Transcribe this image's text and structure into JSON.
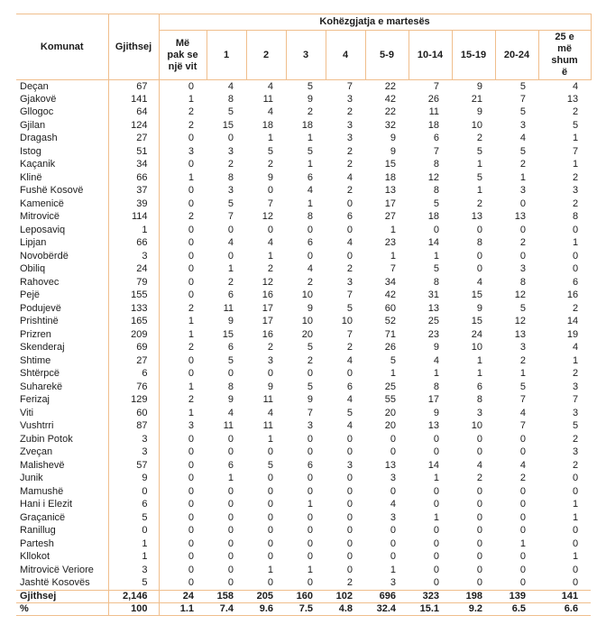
{
  "table": {
    "style": {
      "border_color": "#F0BE8C",
      "text_color": "#1c1c1c"
    },
    "column_headers": {
      "municipality": "Komunat",
      "total": "Gjithsej",
      "group": "Kohëzgjatja e martesës",
      "durations": [
        "Më\npak se\nnjë vit",
        "1",
        "2",
        "3",
        "4",
        "5-9",
        "10-14",
        "15-19",
        "20-24",
        "25 e\nmë\nshum\në"
      ]
    },
    "rows": [
      {
        "name": "Deçan",
        "total": 67,
        "values": [
          0,
          4,
          4,
          5,
          7,
          22,
          7,
          9,
          5,
          4
        ]
      },
      {
        "name": "Gjakovë",
        "total": 141,
        "values": [
          1,
          8,
          11,
          9,
          3,
          42,
          26,
          21,
          7,
          13
        ]
      },
      {
        "name": "Gllogoc",
        "total": 64,
        "values": [
          2,
          5,
          4,
          2,
          2,
          22,
          11,
          9,
          5,
          2
        ]
      },
      {
        "name": "Gjilan",
        "total": 124,
        "values": [
          2,
          15,
          18,
          18,
          3,
          32,
          18,
          10,
          3,
          5
        ]
      },
      {
        "name": "Dragash",
        "total": 27,
        "values": [
          0,
          0,
          1,
          1,
          3,
          9,
          6,
          2,
          4,
          1
        ]
      },
      {
        "name": "Istog",
        "total": 51,
        "values": [
          3,
          3,
          5,
          5,
          2,
          9,
          7,
          5,
          5,
          7
        ]
      },
      {
        "name": "Kaçanik",
        "total": 34,
        "values": [
          0,
          2,
          2,
          1,
          2,
          15,
          8,
          1,
          2,
          1
        ]
      },
      {
        "name": "Klinë",
        "total": 66,
        "values": [
          1,
          8,
          9,
          6,
          4,
          18,
          12,
          5,
          1,
          2
        ]
      },
      {
        "name": "Fushë Kosovë",
        "total": 37,
        "values": [
          0,
          3,
          0,
          4,
          2,
          13,
          8,
          1,
          3,
          3
        ]
      },
      {
        "name": "Kamenicë",
        "total": 39,
        "values": [
          0,
          5,
          7,
          1,
          0,
          17,
          5,
          2,
          0,
          2
        ]
      },
      {
        "name": "Mitrovicë",
        "total": 114,
        "values": [
          2,
          7,
          12,
          8,
          6,
          27,
          18,
          13,
          13,
          8
        ]
      },
      {
        "name": "Leposaviq",
        "total": 1,
        "values": [
          0,
          0,
          0,
          0,
          0,
          1,
          0,
          0,
          0,
          0
        ]
      },
      {
        "name": "Lipjan",
        "total": 66,
        "values": [
          0,
          4,
          4,
          6,
          4,
          23,
          14,
          8,
          2,
          1
        ]
      },
      {
        "name": "Novobërdë",
        "total": 3,
        "values": [
          0,
          0,
          1,
          0,
          0,
          1,
          1,
          0,
          0,
          0
        ]
      },
      {
        "name": "Obiliq",
        "total": 24,
        "values": [
          0,
          1,
          2,
          4,
          2,
          7,
          5,
          0,
          3,
          0
        ]
      },
      {
        "name": "Rahovec",
        "total": 79,
        "values": [
          0,
          2,
          12,
          2,
          3,
          34,
          8,
          4,
          8,
          6
        ]
      },
      {
        "name": "Pejë",
        "total": 155,
        "values": [
          0,
          6,
          16,
          10,
          7,
          42,
          31,
          15,
          12,
          16
        ]
      },
      {
        "name": "Podujevë",
        "total": 133,
        "values": [
          2,
          11,
          17,
          9,
          5,
          60,
          13,
          9,
          5,
          2
        ]
      },
      {
        "name": "Prishtinë",
        "total": 165,
        "values": [
          1,
          9,
          17,
          10,
          10,
          52,
          25,
          15,
          12,
          14
        ]
      },
      {
        "name": "Prizren",
        "total": 209,
        "values": [
          1,
          15,
          16,
          20,
          7,
          71,
          23,
          24,
          13,
          19
        ]
      },
      {
        "name": "Skenderaj",
        "total": 69,
        "values": [
          2,
          6,
          2,
          5,
          2,
          26,
          9,
          10,
          3,
          4
        ]
      },
      {
        "name": "Shtime",
        "total": 27,
        "values": [
          0,
          5,
          3,
          2,
          4,
          5,
          4,
          1,
          2,
          1
        ]
      },
      {
        "name": "Shtërpcë",
        "total": 6,
        "values": [
          0,
          0,
          0,
          0,
          0,
          1,
          1,
          1,
          1,
          2
        ]
      },
      {
        "name": "Suharekë",
        "total": 76,
        "values": [
          1,
          8,
          9,
          5,
          6,
          25,
          8,
          6,
          5,
          3
        ]
      },
      {
        "name": "Ferizaj",
        "total": 129,
        "values": [
          2,
          9,
          11,
          9,
          4,
          55,
          17,
          8,
          7,
          7
        ]
      },
      {
        "name": "Viti",
        "total": 60,
        "values": [
          1,
          4,
          4,
          7,
          5,
          20,
          9,
          3,
          4,
          3
        ]
      },
      {
        "name": "Vushtrri",
        "total": 87,
        "values": [
          3,
          11,
          11,
          3,
          4,
          20,
          13,
          10,
          7,
          5
        ]
      },
      {
        "name": "Zubin Potok",
        "total": 3,
        "values": [
          0,
          0,
          1,
          0,
          0,
          0,
          0,
          0,
          0,
          2
        ]
      },
      {
        "name": "Zveçan",
        "total": 3,
        "values": [
          0,
          0,
          0,
          0,
          0,
          0,
          0,
          0,
          0,
          3
        ]
      },
      {
        "name": "Malishevë",
        "total": 57,
        "values": [
          0,
          6,
          5,
          6,
          3,
          13,
          14,
          4,
          4,
          2
        ]
      },
      {
        "name": "Junik",
        "total": 9,
        "values": [
          0,
          1,
          0,
          0,
          0,
          3,
          1,
          2,
          2,
          0
        ]
      },
      {
        "name": "Mamushë",
        "total": 0,
        "values": [
          0,
          0,
          0,
          0,
          0,
          0,
          0,
          0,
          0,
          0
        ]
      },
      {
        "name": "Hani i Elezit",
        "total": 6,
        "values": [
          0,
          0,
          0,
          1,
          0,
          4,
          0,
          0,
          0,
          1
        ]
      },
      {
        "name": "Graçanicë",
        "total": 5,
        "values": [
          0,
          0,
          0,
          0,
          0,
          3,
          1,
          0,
          0,
          1
        ]
      },
      {
        "name": "Ranillug",
        "total": 0,
        "values": [
          0,
          0,
          0,
          0,
          0,
          0,
          0,
          0,
          0,
          0
        ]
      },
      {
        "name": "Partesh",
        "total": 1,
        "values": [
          0,
          0,
          0,
          0,
          0,
          0,
          0,
          0,
          1,
          0
        ]
      },
      {
        "name": "Kllokot",
        "total": 1,
        "values": [
          0,
          0,
          0,
          0,
          0,
          0,
          0,
          0,
          0,
          1
        ]
      },
      {
        "name": "Mitrovicë Veriore",
        "total": 3,
        "values": [
          0,
          0,
          1,
          1,
          0,
          1,
          0,
          0,
          0,
          0
        ]
      },
      {
        "name": "Jashtë Kosovës",
        "total": 5,
        "values": [
          0,
          0,
          0,
          0,
          2,
          3,
          0,
          0,
          0,
          0
        ]
      }
    ],
    "footer": {
      "total_row": {
        "label": "Gjithsej",
        "total": "2,146",
        "values": [
          24,
          158,
          205,
          160,
          102,
          696,
          323,
          198,
          139,
          141
        ]
      },
      "percent_row": {
        "label": "%",
        "total": "100",
        "values": [
          "1.1",
          "7.4",
          "9.6",
          "7.5",
          "4.8",
          "32.4",
          "15.1",
          "9.2",
          "6.5",
          "6.6"
        ]
      }
    }
  }
}
